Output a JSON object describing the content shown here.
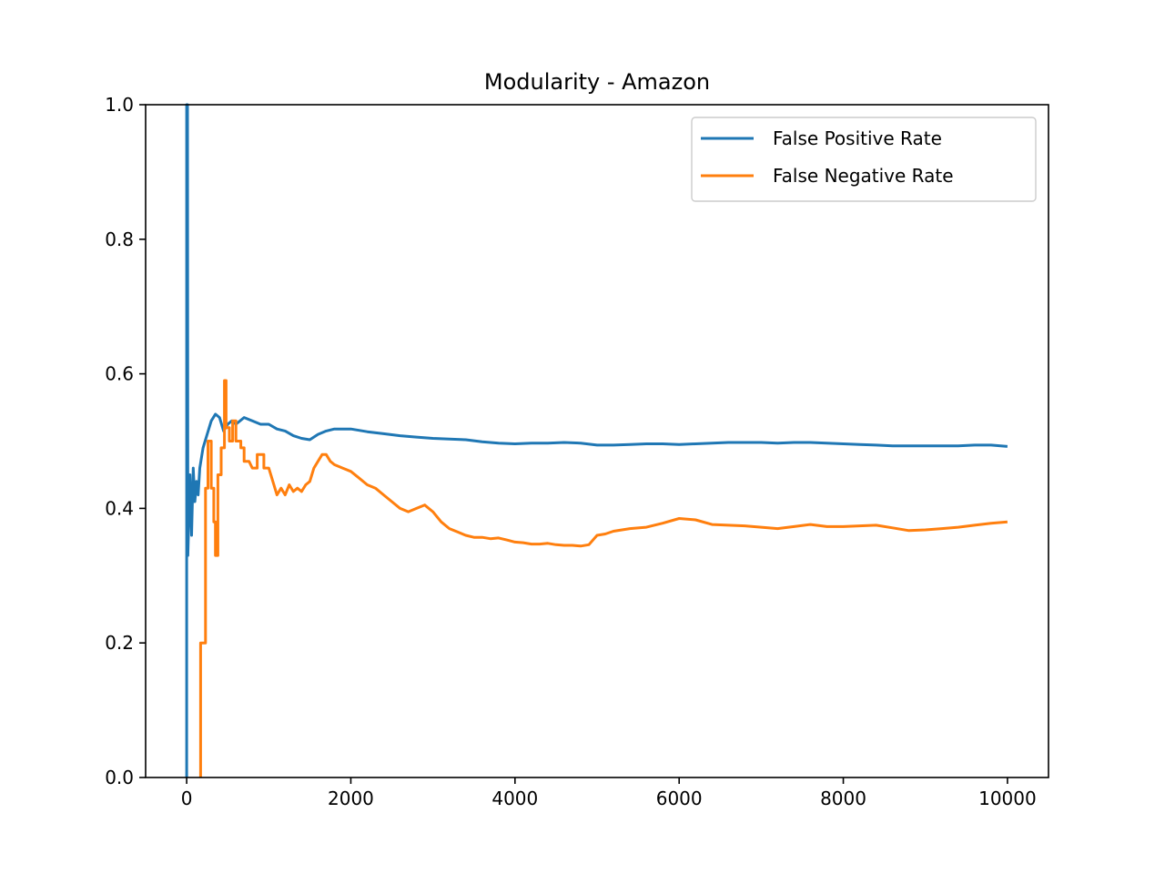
{
  "chart_data": {
    "type": "line",
    "title": "Modularity - Amazon",
    "xlabel": "",
    "ylabel": "",
    "xlim": [
      -500,
      10500
    ],
    "ylim": [
      0.0,
      1.0
    ],
    "x_ticks": [
      0,
      2000,
      4000,
      6000,
      8000,
      10000
    ],
    "x_tick_labels": [
      "0",
      "2000",
      "4000",
      "6000",
      "8000",
      "10000"
    ],
    "y_ticks": [
      0.0,
      0.2,
      0.4,
      0.6,
      0.8,
      1.0
    ],
    "y_tick_labels": [
      "0.0",
      "0.2",
      "0.4",
      "0.6",
      "0.8",
      "1.0"
    ],
    "grid": false,
    "legend_position": "top-right",
    "series": [
      {
        "name": "False Positive Rate",
        "color": "#1f77b4",
        "points": [
          [
            0,
            0.0
          ],
          [
            0,
            1.0
          ],
          [
            10,
            1.0
          ],
          [
            15,
            0.33
          ],
          [
            40,
            0.45
          ],
          [
            60,
            0.36
          ],
          [
            80,
            0.46
          ],
          [
            100,
            0.41
          ],
          [
            120,
            0.44
          ],
          [
            140,
            0.42
          ],
          [
            160,
            0.46
          ],
          [
            200,
            0.49
          ],
          [
            250,
            0.51
          ],
          [
            300,
            0.53
          ],
          [
            350,
            0.54
          ],
          [
            400,
            0.535
          ],
          [
            450,
            0.515
          ],
          [
            500,
            0.525
          ],
          [
            550,
            0.53
          ],
          [
            600,
            0.525
          ],
          [
            700,
            0.535
          ],
          [
            800,
            0.53
          ],
          [
            900,
            0.525
          ],
          [
            1000,
            0.525
          ],
          [
            1100,
            0.518
          ],
          [
            1200,
            0.515
          ],
          [
            1300,
            0.508
          ],
          [
            1400,
            0.504
          ],
          [
            1500,
            0.502
          ],
          [
            1600,
            0.51
          ],
          [
            1700,
            0.515
          ],
          [
            1800,
            0.518
          ],
          [
            2000,
            0.518
          ],
          [
            2200,
            0.514
          ],
          [
            2400,
            0.511
          ],
          [
            2600,
            0.508
          ],
          [
            2800,
            0.506
          ],
          [
            3000,
            0.504
          ],
          [
            3200,
            0.503
          ],
          [
            3400,
            0.502
          ],
          [
            3600,
            0.499
          ],
          [
            3800,
            0.497
          ],
          [
            4000,
            0.496
          ],
          [
            4200,
            0.497
          ],
          [
            4400,
            0.497
          ],
          [
            4600,
            0.498
          ],
          [
            4800,
            0.497
          ],
          [
            5000,
            0.494
          ],
          [
            5200,
            0.494
          ],
          [
            5400,
            0.495
          ],
          [
            5600,
            0.496
          ],
          [
            5800,
            0.496
          ],
          [
            6000,
            0.495
          ],
          [
            6200,
            0.496
          ],
          [
            6400,
            0.497
          ],
          [
            6600,
            0.498
          ],
          [
            6800,
            0.498
          ],
          [
            7000,
            0.498
          ],
          [
            7200,
            0.497
          ],
          [
            7400,
            0.498
          ],
          [
            7600,
            0.498
          ],
          [
            7800,
            0.497
          ],
          [
            8000,
            0.496
          ],
          [
            8200,
            0.495
          ],
          [
            8400,
            0.494
          ],
          [
            8600,
            0.493
          ],
          [
            8800,
            0.493
          ],
          [
            9000,
            0.493
          ],
          [
            9200,
            0.493
          ],
          [
            9400,
            0.493
          ],
          [
            9600,
            0.494
          ],
          [
            9800,
            0.494
          ],
          [
            10000,
            0.492
          ]
        ]
      },
      {
        "name": "False Negative Rate",
        "color": "#ff7f0e",
        "points": [
          [
            170,
            0.0
          ],
          [
            170,
            0.2
          ],
          [
            230,
            0.2
          ],
          [
            230,
            0.43
          ],
          [
            260,
            0.43
          ],
          [
            260,
            0.5
          ],
          [
            300,
            0.5
          ],
          [
            300,
            0.43
          ],
          [
            330,
            0.43
          ],
          [
            330,
            0.38
          ],
          [
            350,
            0.38
          ],
          [
            350,
            0.33
          ],
          [
            380,
            0.33
          ],
          [
            380,
            0.45
          ],
          [
            420,
            0.45
          ],
          [
            420,
            0.49
          ],
          [
            460,
            0.49
          ],
          [
            460,
            0.59
          ],
          [
            480,
            0.59
          ],
          [
            480,
            0.52
          ],
          [
            520,
            0.52
          ],
          [
            520,
            0.5
          ],
          [
            560,
            0.5
          ],
          [
            560,
            0.53
          ],
          [
            600,
            0.53
          ],
          [
            600,
            0.5
          ],
          [
            660,
            0.5
          ],
          [
            660,
            0.49
          ],
          [
            700,
            0.49
          ],
          [
            700,
            0.47
          ],
          [
            760,
            0.47
          ],
          [
            800,
            0.46
          ],
          [
            860,
            0.46
          ],
          [
            860,
            0.48
          ],
          [
            940,
            0.48
          ],
          [
            940,
            0.46
          ],
          [
            1000,
            0.46
          ],
          [
            1050,
            0.44
          ],
          [
            1100,
            0.42
          ],
          [
            1150,
            0.43
          ],
          [
            1200,
            0.42
          ],
          [
            1250,
            0.435
          ],
          [
            1300,
            0.425
          ],
          [
            1350,
            0.43
          ],
          [
            1400,
            0.425
          ],
          [
            1450,
            0.435
          ],
          [
            1500,
            0.44
          ],
          [
            1550,
            0.46
          ],
          [
            1600,
            0.47
          ],
          [
            1650,
            0.48
          ],
          [
            1700,
            0.48
          ],
          [
            1750,
            0.47
          ],
          [
            1800,
            0.465
          ],
          [
            1900,
            0.46
          ],
          [
            2000,
            0.455
          ],
          [
            2100,
            0.445
          ],
          [
            2200,
            0.435
          ],
          [
            2300,
            0.43
          ],
          [
            2400,
            0.42
          ],
          [
            2500,
            0.41
          ],
          [
            2600,
            0.4
          ],
          [
            2700,
            0.395
          ],
          [
            2800,
            0.4
          ],
          [
            2900,
            0.405
          ],
          [
            3000,
            0.395
          ],
          [
            3100,
            0.38
          ],
          [
            3200,
            0.37
          ],
          [
            3300,
            0.365
          ],
          [
            3400,
            0.36
          ],
          [
            3500,
            0.357
          ],
          [
            3600,
            0.357
          ],
          [
            3700,
            0.355
          ],
          [
            3800,
            0.356
          ],
          [
            3900,
            0.353
          ],
          [
            4000,
            0.35
          ],
          [
            4100,
            0.349
          ],
          [
            4200,
            0.347
          ],
          [
            4300,
            0.347
          ],
          [
            4400,
            0.348
          ],
          [
            4500,
            0.346
          ],
          [
            4600,
            0.345
          ],
          [
            4700,
            0.345
          ],
          [
            4800,
            0.344
          ],
          [
            4900,
            0.346
          ],
          [
            5000,
            0.36
          ],
          [
            5100,
            0.362
          ],
          [
            5200,
            0.366
          ],
          [
            5400,
            0.37
          ],
          [
            5600,
            0.372
          ],
          [
            5800,
            0.378
          ],
          [
            6000,
            0.385
          ],
          [
            6200,
            0.383
          ],
          [
            6400,
            0.376
          ],
          [
            6600,
            0.375
          ],
          [
            6800,
            0.374
          ],
          [
            7000,
            0.372
          ],
          [
            7200,
            0.37
          ],
          [
            7400,
            0.373
          ],
          [
            7600,
            0.376
          ],
          [
            7800,
            0.373
          ],
          [
            8000,
            0.373
          ],
          [
            8200,
            0.374
          ],
          [
            8400,
            0.375
          ],
          [
            8600,
            0.371
          ],
          [
            8800,
            0.367
          ],
          [
            9000,
            0.368
          ],
          [
            9200,
            0.37
          ],
          [
            9400,
            0.372
          ],
          [
            9600,
            0.375
          ],
          [
            9800,
            0.378
          ],
          [
            10000,
            0.38
          ]
        ]
      }
    ]
  }
}
